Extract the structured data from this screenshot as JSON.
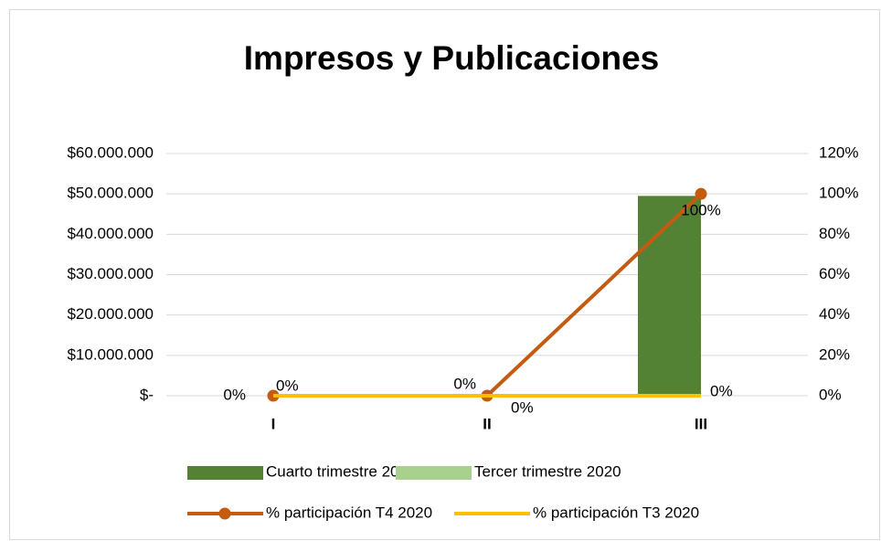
{
  "chart_data": {
    "type": "combo",
    "title": "Impresos y Publicaciones",
    "categories": [
      "I",
      "II",
      "III"
    ],
    "series": [
      {
        "name": "Cuarto trimestre 2020",
        "type": "bar",
        "color": "#548235",
        "values": [
          0,
          0,
          49500000
        ]
      },
      {
        "name": "Tercer trimestre 2020",
        "type": "bar",
        "color": "#a9d18e",
        "values": [
          0,
          0,
          0
        ]
      },
      {
        "name": "% participación T4 2020",
        "type": "line",
        "axis": "y2",
        "color": "#c55a11",
        "values": [
          0,
          0,
          100
        ],
        "value_labels": [
          "0%",
          "0%",
          "100%"
        ]
      },
      {
        "name": "% participación T3 2020",
        "type": "line",
        "axis": "y2",
        "color": "#ffc000",
        "values": [
          0,
          0,
          0
        ],
        "value_labels": [
          "0%",
          "0%",
          "0%"
        ]
      }
    ],
    "ylim": [
      0,
      60000000
    ],
    "yticks": [
      {
        "value": 0,
        "label": "$-"
      },
      {
        "value": 10000000,
        "label": "$10.000.000"
      },
      {
        "value": 20000000,
        "label": "$20.000.000"
      },
      {
        "value": 30000000,
        "label": "$30.000.000"
      },
      {
        "value": 40000000,
        "label": "$40.000.000"
      },
      {
        "value": 50000000,
        "label": "$50.000.000"
      },
      {
        "value": 60000000,
        "label": "$60.000.000"
      }
    ],
    "y2lim": [
      0,
      120
    ],
    "y2ticks": [
      {
        "value": 0,
        "label": "0%"
      },
      {
        "value": 20,
        "label": "20%"
      },
      {
        "value": 40,
        "label": "40%"
      },
      {
        "value": 60,
        "label": "60%"
      },
      {
        "value": 80,
        "label": "80%"
      },
      {
        "value": 100,
        "label": "100%"
      },
      {
        "value": 120,
        "label": "120%"
      }
    ],
    "grid": true,
    "legend": "bottom"
  }
}
